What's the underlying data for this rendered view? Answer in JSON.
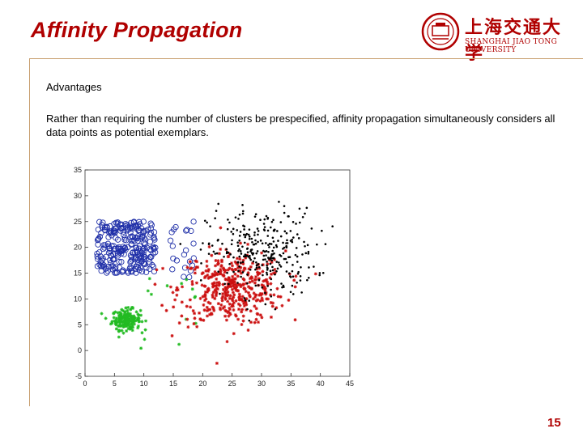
{
  "slide": {
    "title": "Affinity Propagation",
    "heading": "Advantages",
    "paragraph": "Rather than requiring the number of clusters be prespecified, affinity propagation simultaneously considers all data points as potential exemplars.",
    "page_number": "15",
    "logo": {
      "name_cn": "上海交通大学",
      "name_en": "SHANGHAI JIAO TONG UNIVERSITY",
      "color": "#b00000"
    }
  },
  "chart_data": {
    "type": "scatter",
    "xlim": [
      0,
      45
    ],
    "ylim": [
      -5,
      35
    ],
    "x_ticks": [
      "0",
      "5",
      "10",
      "15",
      "20",
      "25",
      "30",
      "35",
      "40",
      "45"
    ],
    "y_ticks": [
      "35",
      "30",
      "25",
      "20",
      "15",
      "10",
      "5",
      "0",
      "-5"
    ],
    "grid": false,
    "series": [
      {
        "marker": "circle",
        "color": "#1f2fa8",
        "shape": "square-cluster",
        "x_range": [
          2,
          12
        ],
        "y_range": [
          15,
          25
        ],
        "count": 260
      },
      {
        "marker": "circle",
        "color": "#1f2fa8",
        "shape": "scatter",
        "x_range": [
          14,
          19
        ],
        "y_range": [
          14,
          25
        ],
        "count": 22
      },
      {
        "marker": "star",
        "color": "#22bb22",
        "center": [
          7,
          6
        ],
        "spread": [
          1.2,
          1.0
        ],
        "count": 180
      },
      {
        "marker": "star",
        "color": "#22bb22",
        "shape": "scatter",
        "x_range": [
          8,
          19
        ],
        "y_range": [
          0,
          14
        ],
        "count": 14
      },
      {
        "marker": "star",
        "color": "#cc1111",
        "center": [
          25,
          12
        ],
        "spread": [
          4.5,
          3.6
        ],
        "count": 420
      },
      {
        "marker": "point",
        "color": "#000000",
        "center": [
          30,
          19
        ],
        "spread": [
          4.6,
          4.2
        ],
        "count": 300
      }
    ]
  }
}
